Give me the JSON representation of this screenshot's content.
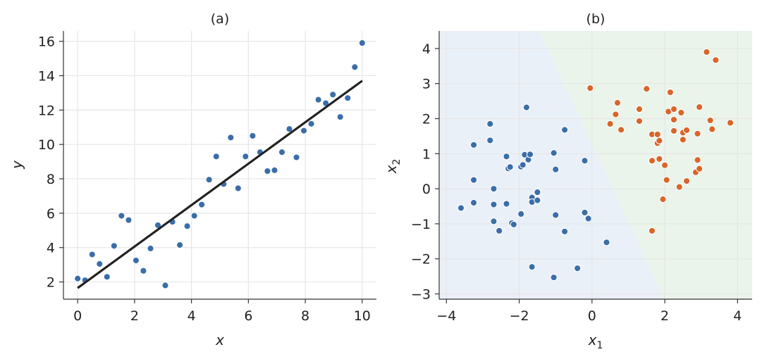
{
  "chart_data": [
    {
      "type": "scatter",
      "title": "(a)",
      "xlabel": "x",
      "ylabel": "y",
      "xlim": [
        -0.5,
        10.5
      ],
      "ylim": [
        1.0,
        16.6
      ],
      "xticks": [
        0,
        2,
        4,
        6,
        8,
        10
      ],
      "yticks": [
        2,
        4,
        6,
        8,
        10,
        12,
        14,
        16
      ],
      "grid": true,
      "colors": {
        "points": "#3a6ea8",
        "fit_line": "#222222"
      },
      "series": [
        {
          "kind": "points",
          "x": [
            0.0,
            0.26,
            0.51,
            0.77,
            1.03,
            1.28,
            1.54,
            1.79,
            2.05,
            2.31,
            2.56,
            2.82,
            3.08,
            3.33,
            3.59,
            3.85,
            4.1,
            4.36,
            4.62,
            4.87,
            5.13,
            5.38,
            5.64,
            5.9,
            6.15,
            6.41,
            6.67,
            6.92,
            7.18,
            7.44,
            7.69,
            7.95,
            8.21,
            8.46,
            8.72,
            8.97,
            9.23,
            9.49,
            9.74,
            10.0
          ],
          "y": [
            2.2,
            2.1,
            3.6,
            3.05,
            2.3,
            4.1,
            5.85,
            5.6,
            3.25,
            2.65,
            3.95,
            5.3,
            1.8,
            5.5,
            4.15,
            5.25,
            5.85,
            6.5,
            7.95,
            9.3,
            7.7,
            10.4,
            7.45,
            9.3,
            10.5,
            9.55,
            8.45,
            8.5,
            9.55,
            10.9,
            9.25,
            10.8,
            11.2,
            12.6,
            12.4,
            12.9,
            11.6,
            12.7,
            14.5,
            15.9
          ]
        },
        {
          "kind": "line",
          "x": [
            0,
            10
          ],
          "y": [
            1.65,
            13.7
          ]
        }
      ]
    },
    {
      "type": "scatter",
      "title": "(b)",
      "xlabel": "x",
      "xlabel_sub": "1",
      "ylabel": "x",
      "ylabel_sub": "2",
      "xlim": [
        -4.2,
        4.4
      ],
      "ylim": [
        -3.15,
        4.5
      ],
      "xticks": [
        -4,
        -2,
        0,
        2,
        4
      ],
      "yticks": [
        -3,
        -2,
        -1,
        0,
        1,
        2,
        3,
        4
      ],
      "xticklabels": [
        "−4",
        "−2",
        "0",
        "2",
        "4"
      ],
      "yticklabels": [
        "−3",
        "−2",
        "−1",
        "0",
        "1",
        "2",
        "3",
        "4"
      ],
      "grid": true,
      "colors": {
        "class0": "#3a6ea8",
        "class1": "#d9652a",
        "region0": "#eaf0f8",
        "region1": "#eaf4ea"
      },
      "decision_boundary": [
        [
          -1.45,
          4.5
        ],
        [
          2.0,
          -3.15
        ]
      ],
      "series": [
        {
          "kind": "class0",
          "points": [
            [
              -3.6,
              -0.55
            ],
            [
              -3.25,
              1.25
            ],
            [
              -3.25,
              0.25
            ],
            [
              -3.25,
              -0.4
            ],
            [
              -2.8,
              1.85
            ],
            [
              -2.8,
              1.38
            ],
            [
              -2.7,
              0.0
            ],
            [
              -2.7,
              -0.45
            ],
            [
              -2.7,
              -0.93
            ],
            [
              -2.55,
              -1.2
            ],
            [
              -2.35,
              0.92
            ],
            [
              -2.3,
              0.58
            ],
            [
              -2.25,
              0.62
            ],
            [
              -2.35,
              -0.43
            ],
            [
              -2.2,
              -0.98
            ],
            [
              -2.15,
              -1.02
            ],
            [
              -1.95,
              0.63
            ],
            [
              -1.9,
              0.68
            ],
            [
              -1.85,
              0.97
            ],
            [
              -1.8,
              2.32
            ],
            [
              -1.75,
              0.83
            ],
            [
              -1.7,
              0.98
            ],
            [
              -1.65,
              -0.25
            ],
            [
              -1.65,
              -0.38
            ],
            [
              -1.65,
              -2.23
            ],
            [
              -1.95,
              -0.72
            ],
            [
              -1.5,
              -0.1
            ],
            [
              -1.5,
              -0.33
            ],
            [
              -1.05,
              1.02
            ],
            [
              -1.0,
              0.55
            ],
            [
              -1.0,
              -0.75
            ],
            [
              -1.05,
              -2.53
            ],
            [
              -0.75,
              1.68
            ],
            [
              -0.75,
              -1.22
            ],
            [
              -0.4,
              -2.27
            ],
            [
              -0.2,
              0.8
            ],
            [
              -0.2,
              -0.68
            ],
            [
              -0.1,
              -0.85
            ],
            [
              0.4,
              -1.53
            ]
          ]
        },
        {
          "kind": "class1",
          "points": [
            [
              -0.05,
              2.87
            ],
            [
              0.5,
              1.85
            ],
            [
              0.65,
              2.12
            ],
            [
              0.7,
              2.45
            ],
            [
              0.8,
              1.68
            ],
            [
              1.3,
              2.27
            ],
            [
              1.3,
              1.93
            ],
            [
              1.5,
              2.85
            ],
            [
              1.65,
              1.55
            ],
            [
              1.65,
              0.8
            ],
            [
              1.65,
              -1.2
            ],
            [
              1.8,
              1.55
            ],
            [
              1.8,
              1.3
            ],
            [
              1.85,
              1.37
            ],
            [
              1.85,
              0.85
            ],
            [
              1.95,
              -0.3
            ],
            [
              2.0,
              0.67
            ],
            [
              2.05,
              0.25
            ],
            [
              2.1,
              2.2
            ],
            [
              2.15,
              2.75
            ],
            [
              2.25,
              2.27
            ],
            [
              2.25,
              1.97
            ],
            [
              2.25,
              1.65
            ],
            [
              2.4,
              0.05
            ],
            [
              2.45,
              2.17
            ],
            [
              2.5,
              1.6
            ],
            [
              2.5,
              1.4
            ],
            [
              2.6,
              1.67
            ],
            [
              2.6,
              0.22
            ],
            [
              2.85,
              0.47
            ],
            [
              2.9,
              1.57
            ],
            [
              2.9,
              0.82
            ],
            [
              2.95,
              2.33
            ],
            [
              2.95,
              0.57
            ],
            [
              3.15,
              3.9
            ],
            [
              3.25,
              1.95
            ],
            [
              3.3,
              1.7
            ],
            [
              3.4,
              3.67
            ],
            [
              3.8,
              1.88
            ]
          ]
        }
      ]
    }
  ]
}
